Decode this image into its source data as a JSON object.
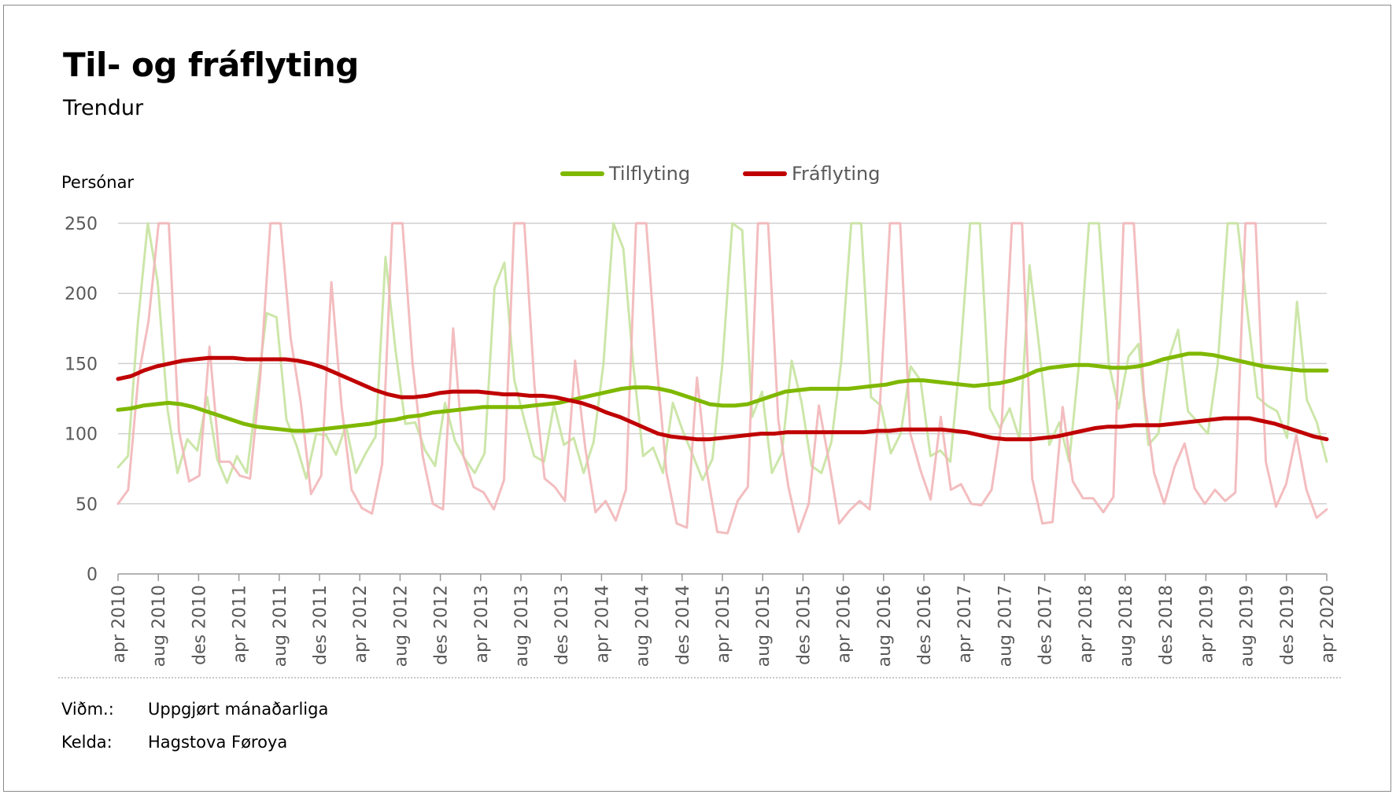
{
  "title": "Til- og fráflyting",
  "subtitle": "Trendur",
  "y_axis_unit": "Persónar",
  "legend": [
    {
      "name": "Tilflyting",
      "color": "#7fb800"
    },
    {
      "name": "Fráflyting",
      "color": "#c00000"
    }
  ],
  "footer": {
    "note_key": "Viðm.:",
    "note_value": "Uppgjørt mánaðarliga",
    "source_key": "Kelda:",
    "source_value": "Hagstova Føroya"
  },
  "chart_data": {
    "type": "line",
    "title": "Til- og fráflyting",
    "subtitle": "Trendur",
    "ylabel": "Persónar",
    "ylim": [
      0,
      250
    ],
    "yticks": [
      0,
      50,
      100,
      150,
      200,
      250
    ],
    "grid": true,
    "legend_position": "top-center",
    "x_range": [
      "2010-04",
      "2020-04"
    ],
    "x_tick_labels": [
      "apr 2010",
      "aug 2010",
      "des 2010",
      "apr 2011",
      "aug 2011",
      "des 2011",
      "apr 2012",
      "aug 2012",
      "des 2012",
      "apr 2013",
      "aug 2013",
      "des 2013",
      "apr 2014",
      "aug 2014",
      "des 2014",
      "apr 2015",
      "aug 2015",
      "des 2015",
      "apr 2016",
      "aug 2016",
      "des 2016",
      "apr 2017",
      "aug 2017",
      "des 2017",
      "apr 2018",
      "aug 2018",
      "des 2018",
      "apr 2019",
      "aug 2019",
      "des 2019",
      "apr 2020"
    ],
    "series": [
      {
        "name": "Tilflyting",
        "role": "trend",
        "color": "#7fb800",
        "values": [
          117,
          118,
          120,
          121,
          122,
          121,
          119,
          116,
          113,
          110,
          107,
          105,
          104,
          103,
          102,
          102,
          103,
          104,
          105,
          106,
          107,
          109,
          110,
          112,
          113,
          115,
          116,
          117,
          118,
          119,
          119,
          119,
          119,
          120,
          121,
          122,
          124,
          126,
          128,
          130,
          132,
          133,
          133,
          132,
          130,
          127,
          124,
          121,
          120,
          120,
          121,
          124,
          127,
          130,
          131,
          132,
          132,
          132,
          132,
          133,
          134,
          135,
          137,
          138,
          138,
          137,
          136,
          135,
          134,
          135,
          136,
          138,
          141,
          145,
          147,
          148,
          149,
          149,
          148,
          147,
          147,
          148,
          150,
          153,
          155,
          157,
          157,
          156,
          154,
          152,
          150,
          148,
          147,
          146,
          145,
          145,
          145
        ]
      },
      {
        "name": "Fráflyting",
        "role": "trend",
        "color": "#c00000",
        "values": [
          139,
          141,
          145,
          148,
          150,
          152,
          153,
          154,
          154,
          154,
          153,
          153,
          153,
          153,
          152,
          150,
          147,
          143,
          139,
          135,
          131,
          128,
          126,
          126,
          127,
          129,
          130,
          130,
          130,
          129,
          128,
          128,
          127,
          127,
          126,
          124,
          122,
          119,
          115,
          112,
          108,
          104,
          100,
          98,
          97,
          96,
          96,
          97,
          98,
          99,
          100,
          100,
          101,
          101,
          101,
          101,
          101,
          101,
          101,
          102,
          102,
          103,
          103,
          103,
          103,
          102,
          101,
          99,
          97,
          96,
          96,
          96,
          97,
          98,
          100,
          102,
          104,
          105,
          105,
          106,
          106,
          106,
          107,
          108,
          109,
          110,
          111,
          111,
          111,
          109,
          107,
          104,
          101,
          98,
          96
        ]
      },
      {
        "name": "Tilflyting",
        "role": "monthly",
        "color": "#c6e3a0",
        "values": [
          76,
          84,
          179,
          263,
          208,
          117,
          72,
          96,
          88,
          126,
          82,
          65,
          84,
          72,
          128,
          186,
          183,
          110,
          92,
          68,
          100,
          99,
          85,
          106,
          72,
          86,
          98,
          226,
          160,
          107,
          108,
          88,
          77,
          122,
          95,
          82,
          72,
          86,
          204,
          222,
          138,
          110,
          84,
          80,
          121,
          92,
          97,
          72,
          94,
          150,
          265,
          232,
          149,
          84,
          90,
          72,
          122,
          102,
          85,
          67,
          82,
          150,
          275,
          245,
          112,
          130,
          72,
          86,
          152,
          122,
          77,
          72,
          94,
          152,
          272,
          265,
          126,
          120,
          86,
          100,
          148,
          138,
          84,
          88,
          80,
          155,
          272,
          265,
          118,
          104,
          118,
          96,
          220,
          160,
          92,
          108,
          80,
          150,
          268,
          258,
          150,
          118,
          155,
          164,
          92,
          100,
          152,
          174,
          116,
          108,
          100,
          150,
          270,
          262,
          186,
          126,
          120,
          116,
          97,
          194,
          124,
          108,
          80
        ]
      },
      {
        "name": "Fráflyting",
        "role": "monthly",
        "color": "#f2b6b8",
        "values": [
          50,
          60,
          140,
          180,
          272,
          258,
          102,
          66,
          70,
          162,
          80,
          80,
          70,
          68,
          140,
          272,
          276,
          168,
          122,
          57,
          70,
          208,
          120,
          60,
          47,
          43,
          78,
          268,
          264,
          150,
          84,
          50,
          46,
          175,
          84,
          62,
          58,
          46,
          67,
          268,
          266,
          134,
          68,
          62,
          52,
          152,
          90,
          44,
          52,
          38,
          60,
          264,
          258,
          152,
          72,
          36,
          33,
          140,
          72,
          30,
          29,
          52,
          62,
          274,
          268,
          110,
          62,
          30,
          50,
          120,
          80,
          36,
          45,
          52,
          46,
          120,
          270,
          262,
          100,
          74,
          53,
          112,
          60,
          64,
          50,
          49,
          60,
          108,
          271,
          265,
          68,
          36,
          37,
          119,
          66,
          54,
          54,
          44,
          55,
          270,
          262,
          128,
          72,
          50,
          76,
          93,
          61,
          50,
          60,
          52,
          58,
          272,
          266,
          80,
          48,
          64,
          99,
          60,
          40,
          46
        ]
      }
    ]
  }
}
